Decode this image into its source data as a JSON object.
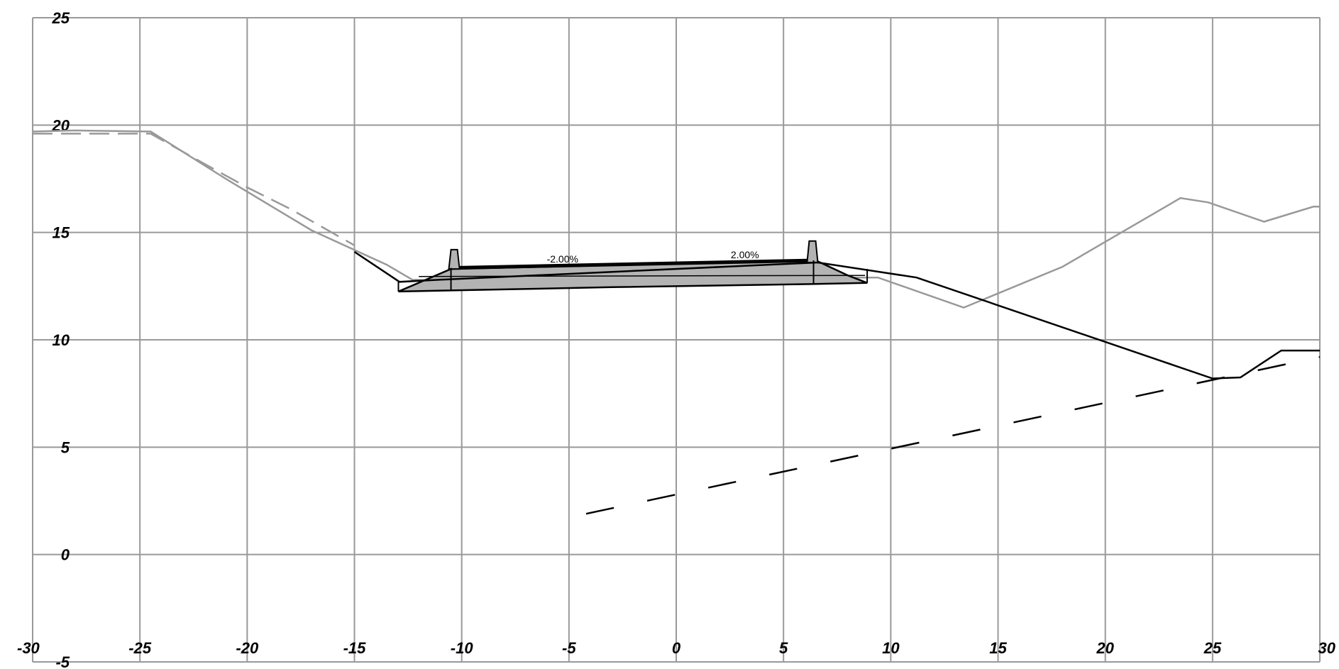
{
  "x_axis": {
    "min": -30,
    "max": 30,
    "step": 5,
    "tick_labels": [
      "-30",
      "-25",
      "-20",
      "-15",
      "-10",
      "-5",
      "0",
      "5",
      "10",
      "15",
      "20",
      "25",
      "30"
    ]
  },
  "y_axis": {
    "min": -5,
    "max": 25,
    "step": 5,
    "tick_labels": [
      "-5",
      "0",
      "5",
      "10",
      "15",
      "20",
      "25"
    ]
  },
  "grid": true,
  "colors": {
    "grid": "#999999",
    "existing_ground": "#999999",
    "design": "#000000",
    "pavement_fill": "#b3b3b3"
  },
  "slope_labels": [
    {
      "text": "-2.00%",
      "x": -5.3,
      "y": 13.6
    },
    {
      "text": "2.00%",
      "x": 3.2,
      "y": 13.8
    }
  ],
  "existing_ground": [
    [
      -30,
      19.7
    ],
    [
      -28,
      19.75
    ],
    [
      -24.5,
      19.7
    ],
    [
      -21,
      17.5
    ],
    [
      -17,
      15.1
    ],
    [
      -13.5,
      13.5
    ],
    [
      -12.3,
      12.8
    ],
    [
      -9,
      12.7
    ],
    [
      -3,
      12.8
    ],
    [
      4,
      12.9
    ],
    [
      9.4,
      12.9
    ],
    [
      13.4,
      11.5
    ],
    [
      18,
      13.4
    ],
    [
      23.5,
      16.6
    ],
    [
      24.8,
      16.4
    ],
    [
      27.4,
      15.5
    ],
    [
      29.7,
      16.2
    ],
    [
      30,
      16.2
    ]
  ],
  "existing_ground_dashed": [
    [
      -30,
      19.6
    ],
    [
      -24.5,
      19.6
    ],
    [
      -22,
      18.2
    ],
    [
      -20,
      17.1
    ],
    [
      -18,
      16.1
    ],
    [
      -15,
      14.4
    ]
  ],
  "design_line": [
    [
      -15,
      14.1
    ],
    [
      -12.9,
      12.7
    ],
    [
      -11,
      12.8
    ],
    [
      6.6,
      13.6
    ],
    [
      11.2,
      12.9
    ],
    [
      25,
      8.2
    ],
    [
      26.3,
      8.25
    ],
    [
      28.2,
      9.5
    ],
    [
      30,
      9.5
    ]
  ],
  "subgrade_dashed": [
    [
      -4.2,
      1.9
    ],
    [
      30,
      9.2
    ]
  ],
  "road_section": {
    "pavement": [
      [
        -12.95,
        12.25
      ],
      [
        -10.5,
        13.3
      ],
      [
        6.5,
        13.7
      ],
      [
        8,
        13
      ],
      [
        8.9,
        12.65
      ],
      [
        6.5,
        12.6
      ],
      [
        -3,
        12.45
      ],
      [
        -12.95,
        12.25
      ]
    ],
    "top_surface": [
      [
        -10.5,
        13.35
      ],
      [
        6.5,
        13.7
      ]
    ],
    "layer": [
      [
        -12,
        12.95
      ],
      [
        8.8,
        13.0
      ]
    ],
    "left_curb": [
      [
        -10.6,
        13.3
      ],
      [
        -10.5,
        14.2
      ],
      [
        -10.2,
        14.2
      ],
      [
        -10.1,
        13.3
      ]
    ],
    "right_curb": [
      [
        6.1,
        13.6
      ],
      [
        6.2,
        14.6
      ],
      [
        6.5,
        14.6
      ],
      [
        6.6,
        13.6
      ]
    ],
    "verticals": [
      [
        -10.5,
        12.3,
        -10.5,
        13.35
      ],
      [
        6.4,
        12.6,
        6.4,
        13.7
      ],
      [
        -12.95,
        12.25,
        -12.95,
        12.7
      ],
      [
        8.9,
        12.65,
        8.9,
        13.3
      ]
    ]
  }
}
